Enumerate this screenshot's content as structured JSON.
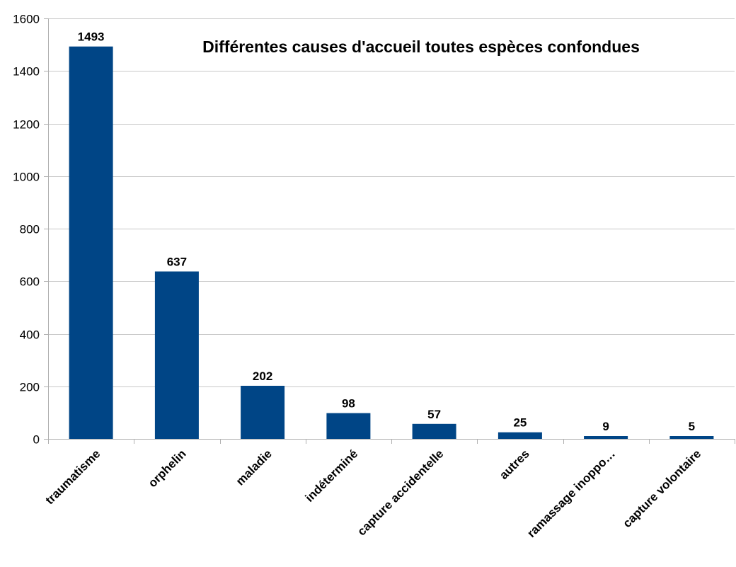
{
  "chart_data": {
    "type": "bar",
    "title": "Différentes causes d'accueil toutes espèces confondues",
    "xlabel": "",
    "ylabel": "",
    "categories": [
      "traumatisme",
      "orphelin",
      "maladie",
      "indéterminé",
      "capture accidentelle",
      "autres",
      "ramassage inoppo…",
      "capture volontaire"
    ],
    "values": [
      1493,
      637,
      202,
      98,
      57,
      25,
      9,
      5
    ],
    "ylim": [
      0,
      1600
    ],
    "yticks": [
      0,
      200,
      400,
      600,
      800,
      1000,
      1200,
      1400,
      1600
    ],
    "grid": true,
    "legend": "none",
    "bar_color": "#004586"
  }
}
